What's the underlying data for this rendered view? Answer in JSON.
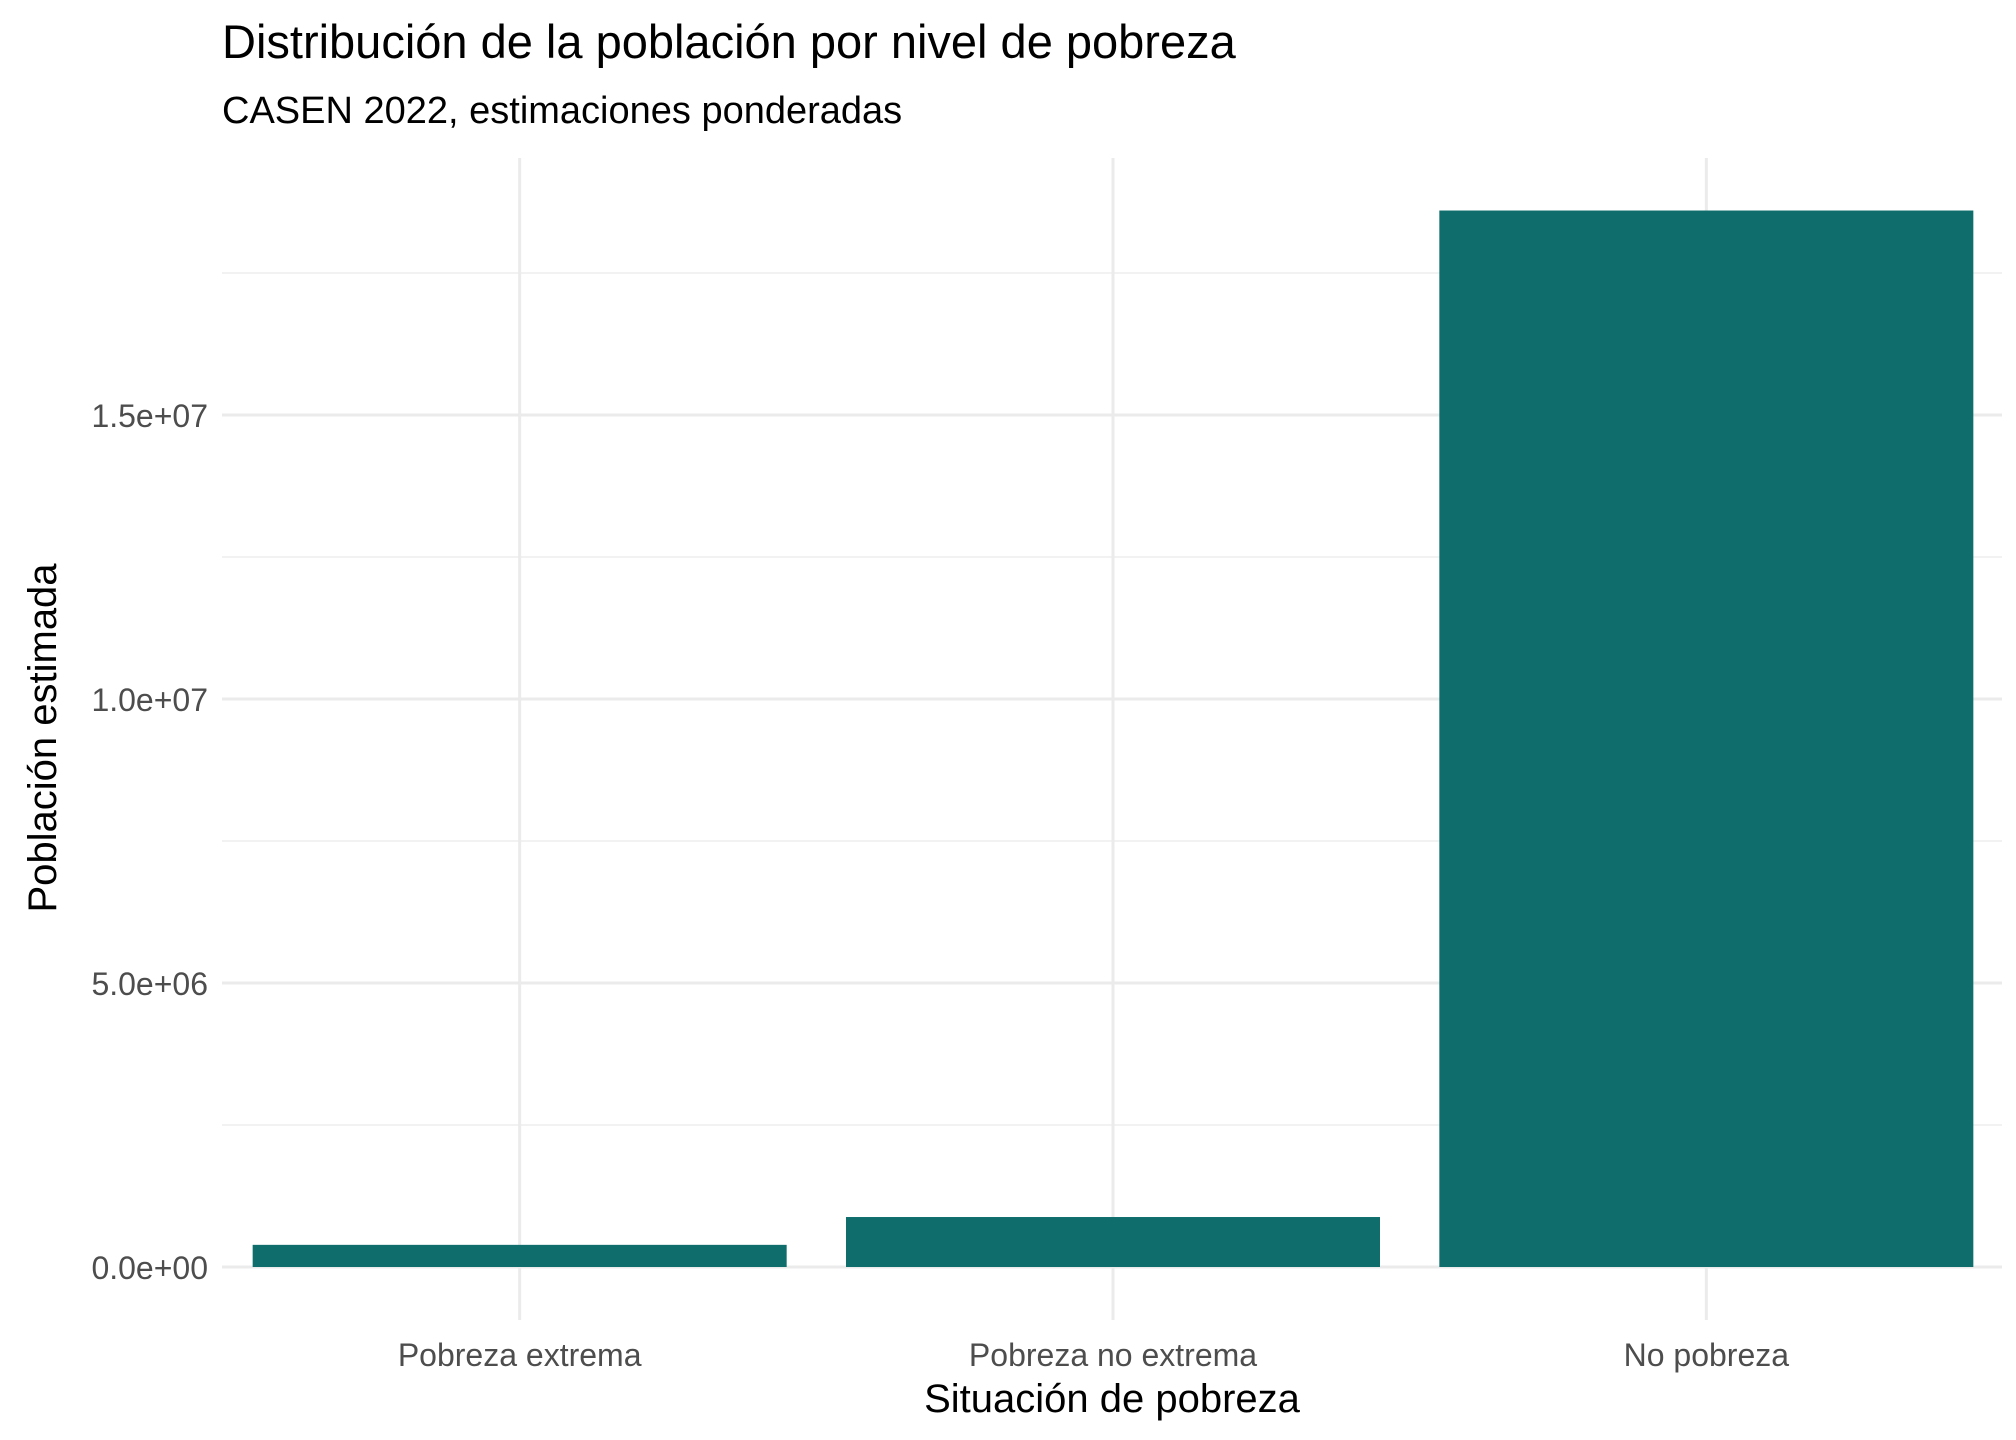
{
  "chart_data": {
    "type": "bar",
    "title": "Distribución de la población por nivel de pobreza",
    "subtitle": "CASEN 2022, estimaciones ponderadas",
    "xlabel": "Situación de pobreza",
    "ylabel": "Población estimada",
    "categories": [
      "Pobreza extrema",
      "Pobreza no extrema",
      "No pobreza"
    ],
    "values": [
      390000,
      880000,
      18600000
    ],
    "ylim": [
      0,
      20000000
    ],
    "yticks": [
      0,
      5000000,
      10000000,
      15000000
    ],
    "ytick_labels": [
      "0.0e+00",
      "5.0e+06",
      "1.0e+07",
      "1.5e+07"
    ],
    "grid": true,
    "legend": "none",
    "colors": {
      "bar": "#0f6e6c",
      "grid_major": "#ebebeb",
      "grid_minor": "#f2f2f2",
      "background": "#ffffff"
    }
  }
}
